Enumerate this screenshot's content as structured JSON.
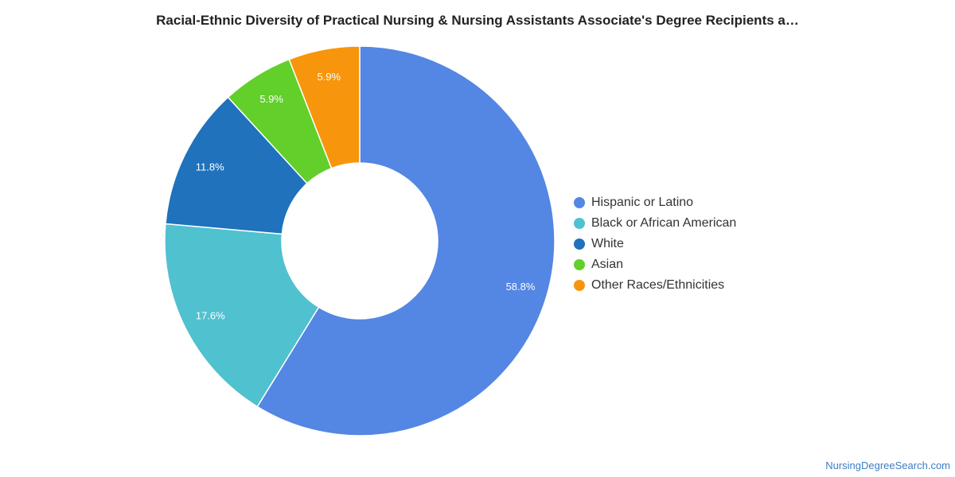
{
  "title": "Racial-Ethnic Diversity of Practical Nursing & Nursing Assistants Associate's Degree Recipients a…",
  "watermark": "NursingDegreeSearch.com",
  "chart_data": {
    "type": "pie",
    "variant": "donut",
    "legend_position": "right",
    "series": [
      {
        "name": "Hispanic or Latino",
        "value": 58.8,
        "label": "58.8%",
        "color": "#5486e3"
      },
      {
        "name": "Black or African American",
        "value": 17.6,
        "label": "17.6%",
        "color": "#4fc1cf"
      },
      {
        "name": "White",
        "value": 11.8,
        "label": "11.8%",
        "color": "#1f72bb"
      },
      {
        "name": "Asian",
        "value": 5.9,
        "label": "5.9%",
        "color": "#62cf2a"
      },
      {
        "name": "Other Races/Ethnicities",
        "value": 5.9,
        "label": "5.9%",
        "color": "#f7960c"
      }
    ]
  }
}
